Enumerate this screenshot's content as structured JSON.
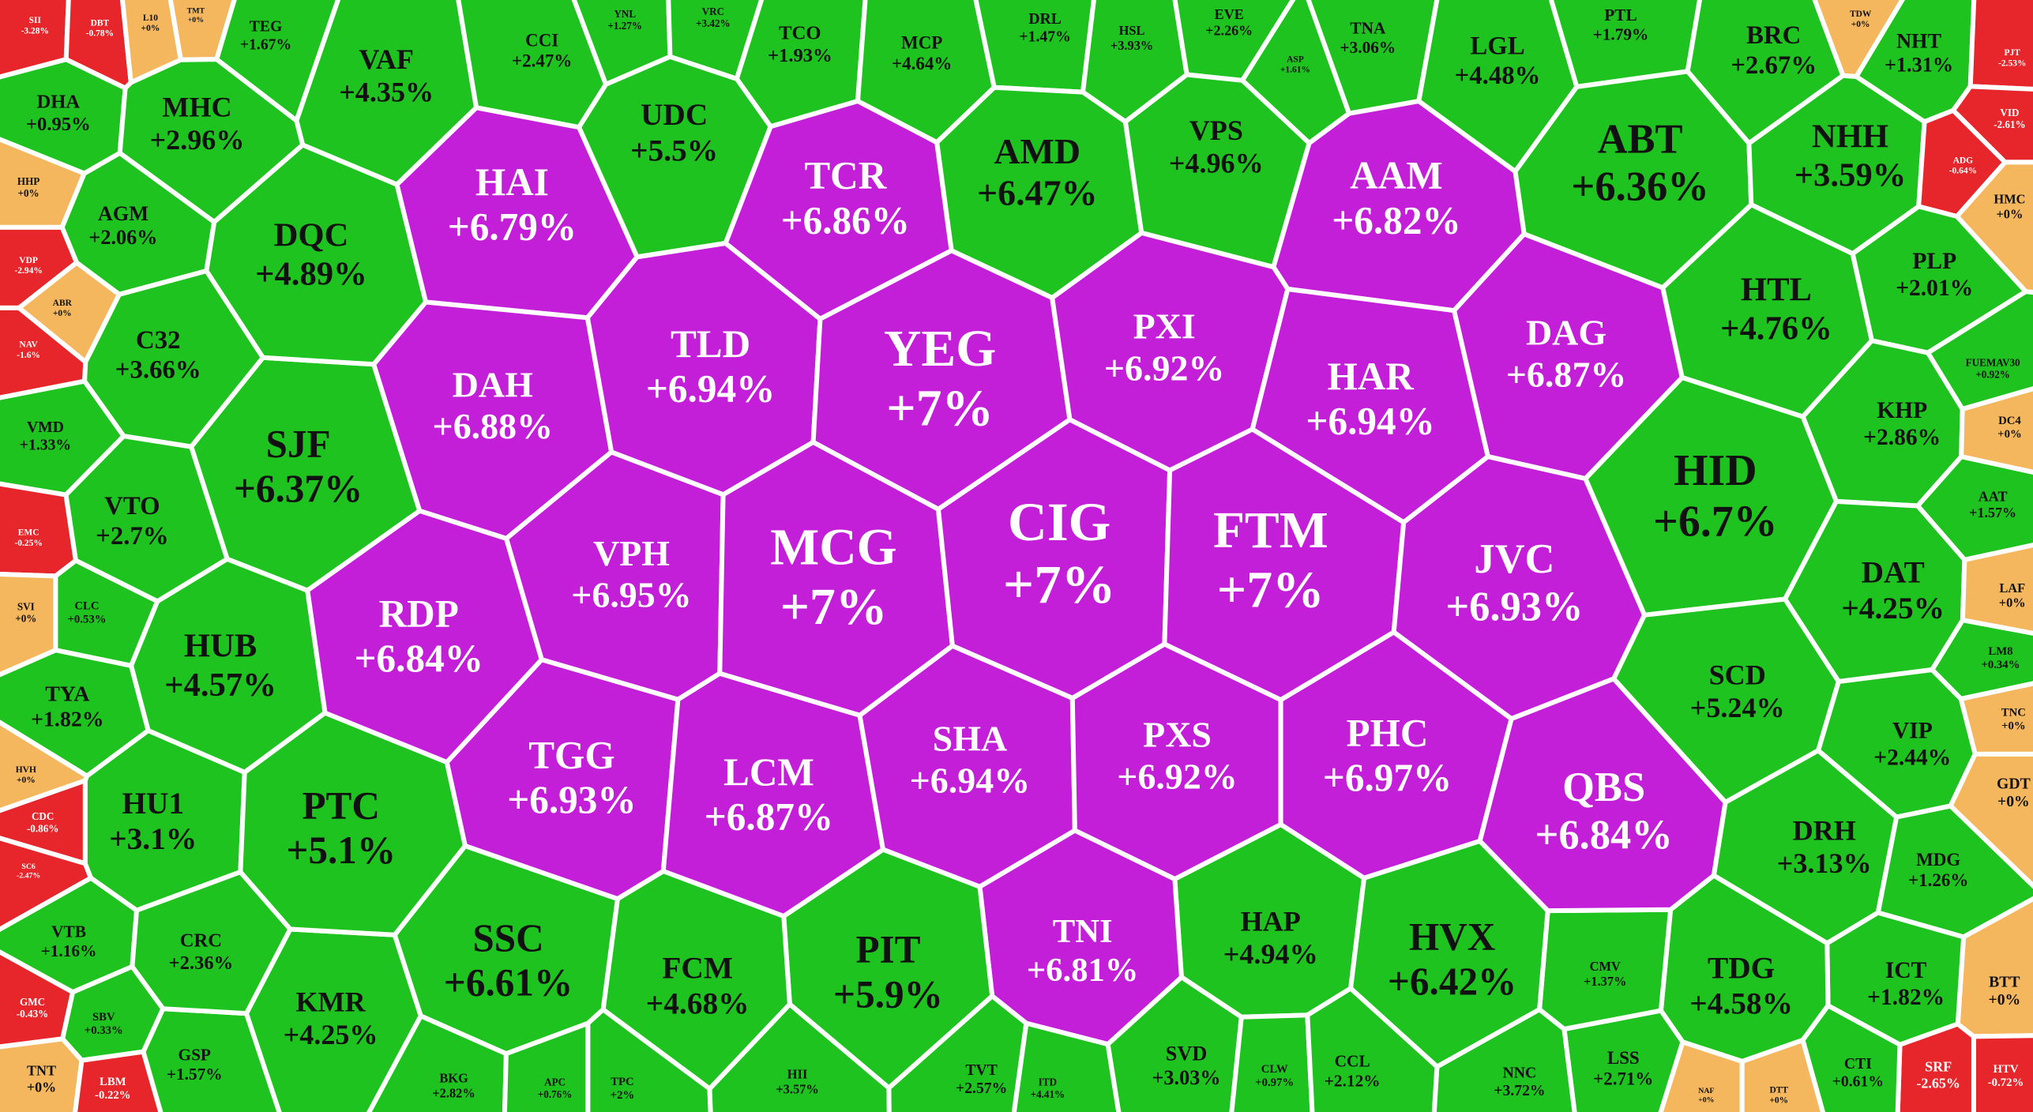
{
  "chart_data": {
    "type": "voronoi-treemap",
    "categories": [
      "SII",
      "DBT",
      "L10",
      "TMT",
      "TEG",
      "VAF",
      "CCI",
      "YNL",
      "VRC",
      "TCO",
      "MCP",
      "DRL",
      "HSL",
      "EVE",
      "ASP",
      "TNA",
      "LGL",
      "PTL",
      "BRC",
      "TDW",
      "NHT",
      "PJT",
      "DHA",
      "MHC",
      "HHP",
      "AGM",
      "VDP",
      "ABR",
      "NAV",
      "C32",
      "VMD",
      "VTO",
      "EMC",
      "SVI",
      "CLC",
      "TYA",
      "HVH",
      "CDC",
      "SC6",
      "HU1",
      "VTB",
      "GMC",
      "SBV",
      "TNT",
      "LBM",
      "GSP",
      "CRC",
      "KMR",
      "HUB",
      "PTC",
      "SJF",
      "DQC",
      "UDC",
      "AMD",
      "VPS",
      "ABT",
      "NHH",
      "ADG",
      "VID",
      "HMC",
      "PLP",
      "HTL",
      "FUEMAV30",
      "KHP",
      "DC4",
      "AAT",
      "HID",
      "DAT",
      "LAF",
      "LM8",
      "TNC",
      "SCD",
      "VIP",
      "GDT",
      "DRH",
      "MDG",
      "BTT",
      "ICT",
      "TDG",
      "HTV",
      "SRF",
      "CTI",
      "LSS",
      "NNC",
      "CMV",
      "HVX",
      "HAP",
      "SVD",
      "CLW",
      "CCL",
      "TNI",
      "PIT",
      "FCM",
      "SSC",
      "BKG",
      "APC",
      "TPC",
      "HII",
      "TVT",
      "ITD",
      "NAF",
      "DTT",
      "HAI",
      "TCR",
      "AAM",
      "TLD",
      "YEG",
      "PXI",
      "DAG",
      "DAH",
      "HAR",
      "VPH",
      "MCG",
      "CIG",
      "FTM",
      "JVC",
      "RDP",
      "TGG",
      "LCM",
      "SHA",
      "PXS",
      "PHC",
      "QBS"
    ],
    "values": [
      -3.28,
      -0.78,
      0,
      0,
      1.67,
      4.35,
      2.47,
      1.27,
      3.42,
      1.93,
      4.64,
      1.47,
      3.93,
      2.26,
      1.61,
      3.06,
      4.48,
      1.79,
      2.67,
      0,
      1.31,
      -2.53,
      0.95,
      2.96,
      0,
      2.06,
      -2.94,
      0,
      -1.6,
      3.66,
      1.33,
      2.7,
      -0.25,
      0,
      0.53,
      1.82,
      0,
      -0.86,
      -2.47,
      3.1,
      1.16,
      -0.43,
      0.33,
      0,
      -0.22,
      1.57,
      2.36,
      4.25,
      4.57,
      5.1,
      6.37,
      4.89,
      5.5,
      6.47,
      4.96,
      6.36,
      3.59,
      -0.64,
      -2.61,
      0,
      2.01,
      4.76,
      0.92,
      2.86,
      0,
      1.57,
      6.7,
      4.25,
      0,
      0.34,
      0,
      5.24,
      2.44,
      0,
      3.13,
      1.26,
      0,
      1.82,
      4.58,
      -0.72,
      -2.65,
      0.61,
      2.71,
      3.72,
      1.37,
      6.42,
      4.94,
      3.03,
      0.97,
      2.12,
      6.81,
      5.9,
      4.68,
      6.61,
      2.82,
      0.76,
      2,
      3.57,
      2.57,
      4.41,
      0,
      0,
      6.79,
      6.86,
      6.82,
      6.94,
      7,
      6.92,
      6.87,
      6.88,
      6.94,
      6.95,
      7,
      7,
      7,
      6.93,
      6.84,
      6.93,
      6.87,
      6.94,
      6.92,
      6.97,
      6.84
    ],
    "value_labels": [
      "-3.28%",
      "-0.78%",
      "+0%",
      "+0%",
      "+1.67%",
      "+4.35%",
      "+2.47%",
      "+1.27%",
      "+3.42%",
      "+1.93%",
      "+4.64%",
      "+1.47%",
      "+3.93%",
      "+2.26%",
      "+1.61%",
      "+3.06%",
      "+4.48%",
      "+1.79%",
      "+2.67%",
      "+0%",
      "+1.31%",
      "-2.53%",
      "+0.95%",
      "+2.96%",
      "+0%",
      "+2.06%",
      "-2.94%",
      "+0%",
      "-1.6%",
      "+3.66%",
      "+1.33%",
      "+2.7%",
      "-0.25%",
      "+0%",
      "+0.53%",
      "+1.82%",
      "+0%",
      "-0.86%",
      "-2.47%",
      "+3.1%",
      "+1.16%",
      "-0.43%",
      "+0.33%",
      "+0%",
      "-0.22%",
      "+1.57%",
      "+2.36%",
      "+4.25%",
      "+4.57%",
      "+5.1%",
      "+6.37%",
      "+4.89%",
      "+5.5%",
      "+6.47%",
      "+4.96%",
      "+6.36%",
      "+3.59%",
      "-0.64%",
      "-2.61%",
      "+0%",
      "+2.01%",
      "+4.76%",
      "+0.92%",
      "+2.86%",
      "+0%",
      "+1.57%",
      "+6.7%",
      "+4.25%",
      "+0%",
      "+0.34%",
      "+0%",
      "+5.24%",
      "+2.44%",
      "+0%",
      "+3.13%",
      "+1.26%",
      "+0%",
      "+1.82%",
      "+4.58%",
      "-0.72%",
      "-2.65%",
      "+0.61%",
      "+2.71%",
      "+3.72%",
      "+1.37%",
      "+6.42%",
      "+4.94%",
      "+3.03%",
      "+0.97%",
      "+2.12%",
      "+6.81%",
      "+5.9%",
      "+4.68%",
      "+6.61%",
      "+2.82%",
      "+0.76%",
      "+2%",
      "+3.57%",
      "+2.57%",
      "+4.41%",
      "+0%",
      "+0%",
      "+6.79%",
      "+6.86%",
      "+6.82%",
      "+6.94%",
      "+7%",
      "+6.92%",
      "+6.87%",
      "+6.88%",
      "+6.94%",
      "+6.95%",
      "+7%",
      "+7%",
      "+7%",
      "+6.93%",
      "+6.84%",
      "+6.93%",
      "+6.87%",
      "+6.94%",
      "+6.92%",
      "+6.97%",
      "+6.84%"
    ],
    "colors": [
      "#e6262a",
      "#e6262a",
      "#f4b75e",
      "#f4b75e",
      "#1fc31f",
      "#1fc31f",
      "#1fc31f",
      "#1fc31f",
      "#1fc31f",
      "#1fc31f",
      "#1fc31f",
      "#1fc31f",
      "#1fc31f",
      "#1fc31f",
      "#1fc31f",
      "#1fc31f",
      "#1fc31f",
      "#1fc31f",
      "#1fc31f",
      "#f4b75e",
      "#1fc31f",
      "#e6262a",
      "#1fc31f",
      "#1fc31f",
      "#f4b75e",
      "#1fc31f",
      "#e6262a",
      "#f4b75e",
      "#e6262a",
      "#1fc31f",
      "#1fc31f",
      "#1fc31f",
      "#e6262a",
      "#f4b75e",
      "#1fc31f",
      "#1fc31f",
      "#f4b75e",
      "#e6262a",
      "#e6262a",
      "#1fc31f",
      "#1fc31f",
      "#e6262a",
      "#1fc31f",
      "#f4b75e",
      "#e6262a",
      "#1fc31f",
      "#1fc31f",
      "#1fc31f",
      "#1fc31f",
      "#1fc31f",
      "#1fc31f",
      "#1fc31f",
      "#1fc31f",
      "#1fc31f",
      "#1fc31f",
      "#1fc31f",
      "#1fc31f",
      "#e6262a",
      "#e6262a",
      "#f4b75e",
      "#1fc31f",
      "#1fc31f",
      "#1fc31f",
      "#1fc31f",
      "#f4b75e",
      "#1fc31f",
      "#1fc31f",
      "#1fc31f",
      "#f4b75e",
      "#1fc31f",
      "#f4b75e",
      "#1fc31f",
      "#1fc31f",
      "#f4b75e",
      "#1fc31f",
      "#1fc31f",
      "#f4b75e",
      "#1fc31f",
      "#1fc31f",
      "#e6262a",
      "#e6262a",
      "#1fc31f",
      "#1fc31f",
      "#1fc31f",
      "#1fc31f",
      "#1fc31f",
      "#1fc31f",
      "#1fc31f",
      "#1fc31f",
      "#1fc31f",
      "#c41fd8",
      "#1fc31f",
      "#1fc31f",
      "#1fc31f",
      "#1fc31f",
      "#1fc31f",
      "#1fc31f",
      "#1fc31f",
      "#1fc31f",
      "#1fc31f",
      "#f4b75e",
      "#f4b75e",
      "#c41fd8",
      "#c41fd8",
      "#c41fd8",
      "#c41fd8",
      "#c41fd8",
      "#c41fd8",
      "#c41fd8",
      "#c41fd8",
      "#c41fd8",
      "#c41fd8",
      "#c41fd8",
      "#c41fd8",
      "#c41fd8",
      "#c41fd8",
      "#c41fd8",
      "#c41fd8",
      "#c41fd8",
      "#c41fd8",
      "#c41fd8",
      "#c41fd8",
      "#c41fd8"
    ]
  }
}
